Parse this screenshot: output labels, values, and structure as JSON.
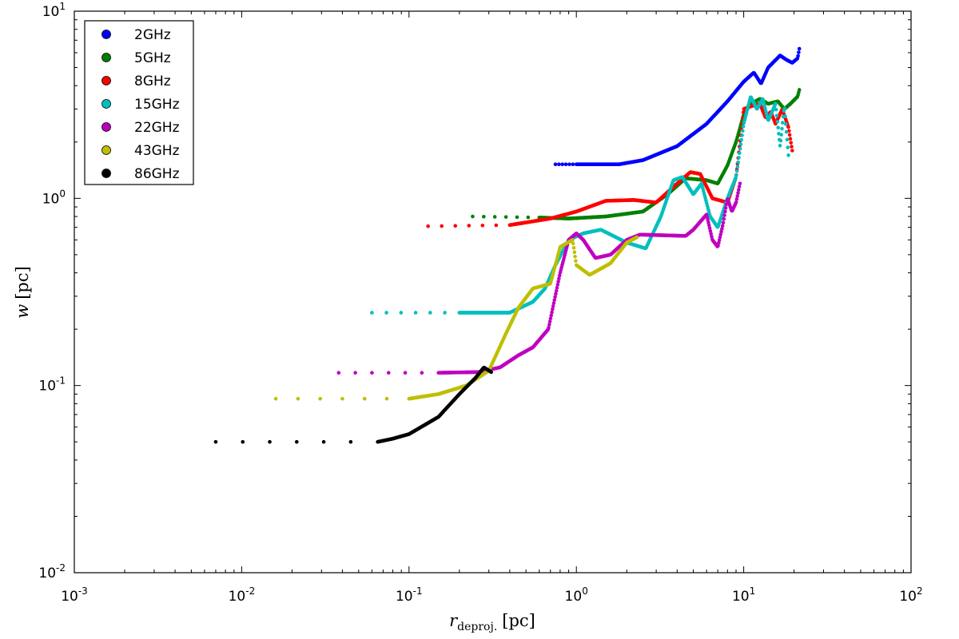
{
  "chart_data": {
    "type": "scatter",
    "xscale": "log",
    "yscale": "log",
    "xlim": [
      0.001,
      100
    ],
    "ylim": [
      0.01,
      10
    ],
    "grid": false,
    "legend_position": "top-left",
    "xlabel": {
      "main": "r",
      "sub": "deproj.",
      "unit": "[pc]"
    },
    "ylabel": {
      "main": "w",
      "unit": "[pc]"
    },
    "xticks": [
      {
        "base": "10",
        "exp": "-3",
        "value": 0.001
      },
      {
        "base": "10",
        "exp": "-2",
        "value": 0.01
      },
      {
        "base": "10",
        "exp": "-1",
        "value": 0.1
      },
      {
        "base": "10",
        "exp": "0",
        "value": 1
      },
      {
        "base": "10",
        "exp": "1",
        "value": 10
      },
      {
        "base": "10",
        "exp": "2",
        "value": 100
      }
    ],
    "yticks": [
      {
        "base": "10",
        "exp": "-2",
        "value": 0.01
      },
      {
        "base": "10",
        "exp": "-1",
        "value": 0.1
      },
      {
        "base": "10",
        "exp": "0",
        "value": 1
      },
      {
        "base": "10",
        "exp": "1",
        "value": 10
      }
    ],
    "series": [
      {
        "name": "2GHz",
        "color": "#0000ff",
        "anchors": [
          [
            0.75,
            1.52
          ],
          [
            1.0,
            1.52
          ],
          [
            1.2,
            1.52
          ],
          [
            1.8,
            1.52
          ],
          [
            2.5,
            1.6
          ],
          [
            4,
            1.9
          ],
          [
            6,
            2.5
          ],
          [
            8,
            3.3
          ],
          [
            10,
            4.2
          ],
          [
            11.5,
            4.7
          ],
          [
            12.7,
            4.1
          ],
          [
            14,
            5.0
          ],
          [
            16.5,
            5.8
          ],
          [
            18,
            5.5
          ],
          [
            19.5,
            5.3
          ],
          [
            21,
            5.6
          ],
          [
            21.5,
            6.3
          ]
        ]
      },
      {
        "name": "5GHz",
        "color": "#008000",
        "anchors": [
          [
            0.24,
            0.8
          ],
          [
            0.6,
            0.79
          ],
          [
            0.9,
            0.78
          ],
          [
            1.5,
            0.8
          ],
          [
            2.5,
            0.85
          ],
          [
            3.5,
            1.05
          ],
          [
            4.5,
            1.28
          ],
          [
            6,
            1.25
          ],
          [
            7,
            1.2
          ],
          [
            8,
            1.5
          ],
          [
            9,
            2.0
          ],
          [
            10,
            2.8
          ],
          [
            11,
            3.2
          ],
          [
            12.5,
            3.4
          ],
          [
            14,
            3.2
          ],
          [
            16,
            3.3
          ],
          [
            17.5,
            3.0
          ],
          [
            19,
            3.2
          ],
          [
            21,
            3.5
          ],
          [
            21.5,
            3.8
          ]
        ]
      },
      {
        "name": "8GHz",
        "color": "#ff0000",
        "anchors": [
          [
            0.13,
            0.71
          ],
          [
            0.4,
            0.72
          ],
          [
            0.7,
            0.78
          ],
          [
            1.0,
            0.85
          ],
          [
            1.5,
            0.97
          ],
          [
            2.2,
            0.98
          ],
          [
            3,
            0.95
          ],
          [
            4,
            1.2
          ],
          [
            4.8,
            1.38
          ],
          [
            5.5,
            1.35
          ],
          [
            6.5,
            1.0
          ],
          [
            8,
            0.95
          ],
          [
            9,
            1.3
          ],
          [
            10,
            3.0
          ],
          [
            11,
            3.1
          ],
          [
            12.5,
            3.2
          ],
          [
            13.5,
            2.7
          ],
          [
            14.5,
            2.9
          ],
          [
            15.5,
            2.5
          ],
          [
            17,
            3.0
          ],
          [
            18.5,
            2.4
          ],
          [
            19.5,
            1.8
          ]
        ]
      },
      {
        "name": "15GHz",
        "color": "#00bfbf",
        "anchors": [
          [
            0.06,
            0.245
          ],
          [
            0.2,
            0.245
          ],
          [
            0.4,
            0.245
          ],
          [
            0.55,
            0.28
          ],
          [
            0.65,
            0.33
          ],
          [
            0.75,
            0.44
          ],
          [
            0.9,
            0.6
          ],
          [
            1.1,
            0.65
          ],
          [
            1.4,
            0.68
          ],
          [
            2.0,
            0.58
          ],
          [
            2.6,
            0.54
          ],
          [
            3.2,
            0.8
          ],
          [
            3.8,
            1.25
          ],
          [
            4.3,
            1.3
          ],
          [
            5.0,
            1.05
          ],
          [
            5.6,
            1.2
          ],
          [
            6.3,
            0.8
          ],
          [
            7,
            0.7
          ],
          [
            8,
            1.0
          ],
          [
            9,
            1.3
          ],
          [
            10,
            2.5
          ],
          [
            11,
            3.5
          ],
          [
            12,
            3.0
          ],
          [
            13,
            3.4
          ],
          [
            14,
            2.6
          ],
          [
            15.5,
            3.2
          ],
          [
            16.5,
            1.9
          ],
          [
            17.5,
            3.1
          ],
          [
            18.5,
            1.7
          ]
        ]
      },
      {
        "name": "22GHz",
        "color": "#bf00bf",
        "anchors": [
          [
            0.038,
            0.117
          ],
          [
            0.15,
            0.117
          ],
          [
            0.26,
            0.118
          ],
          [
            0.35,
            0.125
          ],
          [
            0.45,
            0.145
          ],
          [
            0.55,
            0.16
          ],
          [
            0.68,
            0.2
          ],
          [
            0.8,
            0.4
          ],
          [
            0.9,
            0.6
          ],
          [
            1.0,
            0.65
          ],
          [
            1.1,
            0.6
          ],
          [
            1.3,
            0.48
          ],
          [
            1.6,
            0.5
          ],
          [
            2.0,
            0.6
          ],
          [
            2.4,
            0.64
          ],
          [
            4.5,
            0.63
          ],
          [
            5,
            0.68
          ],
          [
            5.5,
            0.75
          ],
          [
            6,
            0.82
          ],
          [
            6.5,
            0.6
          ],
          [
            7,
            0.55
          ],
          [
            7.5,
            0.72
          ],
          [
            8,
            1.0
          ],
          [
            8.5,
            0.85
          ],
          [
            9,
            0.95
          ],
          [
            9.5,
            1.2
          ]
        ]
      },
      {
        "name": "43GHz",
        "color": "#bfbf00",
        "anchors": [
          [
            0.016,
            0.085
          ],
          [
            0.1,
            0.085
          ],
          [
            0.15,
            0.09
          ],
          [
            0.22,
            0.1
          ],
          [
            0.3,
            0.12
          ],
          [
            0.38,
            0.19
          ],
          [
            0.45,
            0.26
          ],
          [
            0.55,
            0.33
          ],
          [
            0.7,
            0.35
          ],
          [
            0.8,
            0.55
          ],
          [
            0.95,
            0.6
          ],
          [
            1.0,
            0.44
          ],
          [
            1.2,
            0.39
          ],
          [
            1.6,
            0.45
          ],
          [
            2.0,
            0.58
          ],
          [
            2.3,
            0.62
          ]
        ]
      },
      {
        "name": "86GHz",
        "color": "#000000",
        "anchors": [
          [
            0.007,
            0.05
          ],
          [
            0.065,
            0.05
          ],
          [
            0.08,
            0.052
          ],
          [
            0.1,
            0.055
          ],
          [
            0.15,
            0.068
          ],
          [
            0.2,
            0.09
          ],
          [
            0.25,
            0.11
          ],
          [
            0.28,
            0.125
          ],
          [
            0.31,
            0.118
          ]
        ]
      }
    ]
  }
}
